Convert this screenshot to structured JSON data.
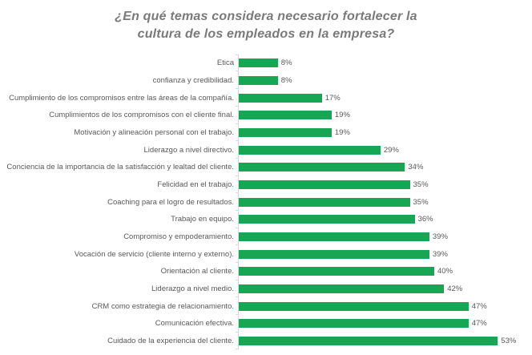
{
  "title": "¿En qué temas considera necesario fortalecer la\ncultura de los empleados en la empresa?",
  "chart_data": {
    "type": "bar",
    "orientation": "horizontal",
    "title": "¿En qué temas considera necesario fortalecer la cultura de los empleados en la empresa?",
    "categories": [
      "Etica",
      "confianza y credibilidad.",
      "Cumplimiento de los compromisos entre las áreas de la compañía.",
      "Cumplimientos de los compromisos con el cliente final.",
      "Motivación y alineación personal con el trabajo.",
      "Liderazgo a nivel directivo.",
      "Conciencia de la importancia de la satisfacción y lealtad del cliente.",
      "Felicidad en el trabajo.",
      "Coaching para el logro de resultados.",
      "Trabajo en equipo.",
      "Compromiso y empoderamiento.",
      "Vocación de servicio (cliente interno y externo).",
      "Orientación al cliente.",
      "Liderazgo a nivel medio.",
      "CRM como estrategia de relacionamiento.",
      "Comunicación efectiva.",
      "Cuidado de la experiencia del cliente."
    ],
    "values": [
      8,
      8,
      17,
      19,
      19,
      29,
      34,
      35,
      35,
      36,
      39,
      39,
      40,
      42,
      47,
      47,
      53
    ],
    "value_suffix": "%",
    "xlabel": "",
    "ylabel": "",
    "xlim": [
      0,
      60
    ],
    "grid": false,
    "legend": false,
    "data_labels": true,
    "bar_color": "#17a654",
    "label_color": "#595959",
    "title_color": "#7a7a7a",
    "axis_line_color": "#d9d9d9"
  }
}
